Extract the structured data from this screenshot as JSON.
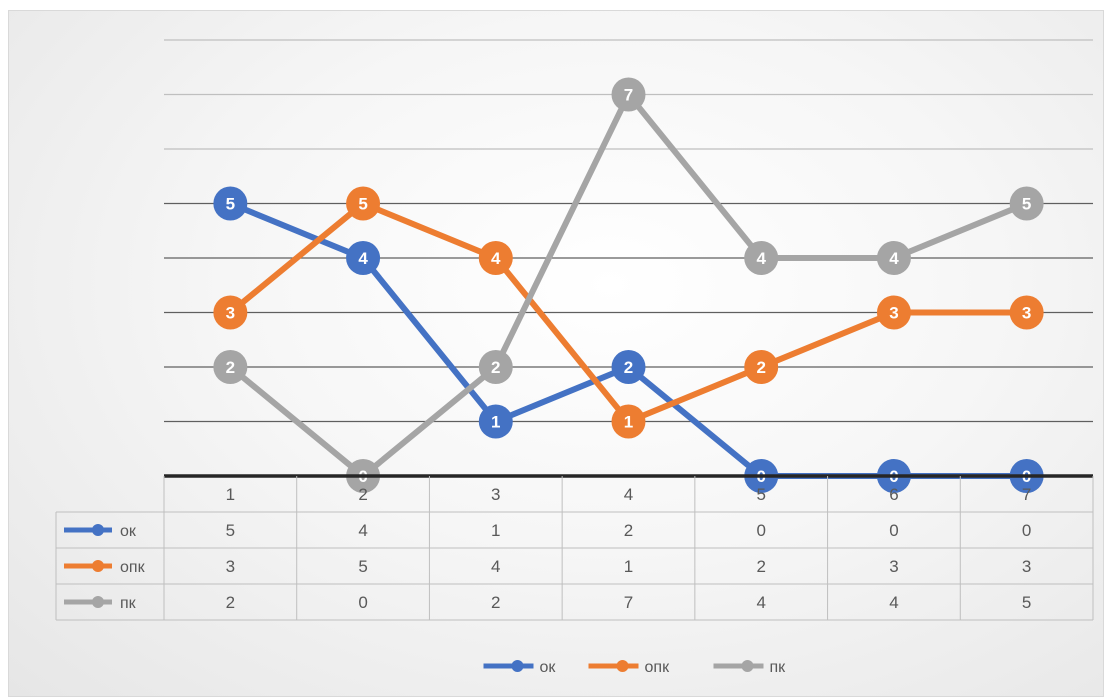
{
  "chart_data": {
    "type": "line",
    "categories": [
      "1",
      "2",
      "3",
      "4",
      "5",
      "6",
      "7"
    ],
    "series": [
      {
        "name": "ок",
        "color": "#4472c4",
        "values": [
          5,
          4,
          1,
          2,
          0,
          0,
          0
        ]
      },
      {
        "name": "опк",
        "color": "#ed7d31",
        "values": [
          3,
          5,
          4,
          1,
          2,
          3,
          3
        ]
      },
      {
        "name": "пк",
        "color": "#a5a5a5",
        "values": [
          2,
          0,
          2,
          7,
          4,
          4,
          5
        ]
      }
    ],
    "ylim": [
      0,
      8
    ],
    "grid": true,
    "data_labels": true,
    "data_table": true,
    "legend_position": "bottom"
  }
}
